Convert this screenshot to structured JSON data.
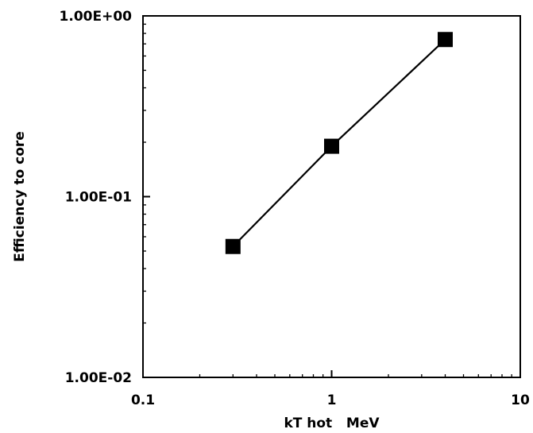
{
  "chart_data": {
    "type": "line",
    "xlabel": "kT hot   MeV",
    "ylabel": "Efficiency to core",
    "x_scale": "log",
    "y_scale": "log",
    "xlim": [
      0.1,
      10
    ],
    "ylim": [
      0.01,
      1
    ],
    "x_ticks": [
      {
        "value": 0.1,
        "label": "0.1"
      },
      {
        "value": 1,
        "label": "1"
      },
      {
        "value": 10,
        "label": "10"
      }
    ],
    "y_ticks": [
      {
        "value": 1,
        "label": "1.00E+00"
      },
      {
        "value": 0.1,
        "label": "1.00E-01"
      },
      {
        "value": 0.01,
        "label": "1.00E-02"
      }
    ],
    "grid": false,
    "legend": "none",
    "marker": "square",
    "series": [
      {
        "points": [
          {
            "x": 0.3,
            "y": 0.053
          },
          {
            "x": 1,
            "y": 0.19
          },
          {
            "x": 4,
            "y": 0.74
          }
        ],
        "color": "#000000"
      }
    ]
  }
}
